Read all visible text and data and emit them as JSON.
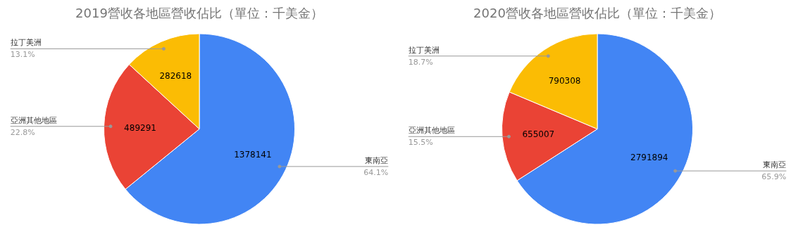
{
  "chart_data": [
    {
      "type": "pie",
      "title": "2019營收各地區營收佔比（單位：千美金）",
      "categories": [
        "東南亞",
        "亞洲其他地區",
        "拉丁美洲"
      ],
      "values": [
        1378141,
        489291,
        282618
      ],
      "colors": [
        "#4285f4",
        "#ea4335",
        "#fbbc04"
      ],
      "data_labels": true,
      "annotations": [
        "64.1%",
        "22.8%",
        "13.1%"
      ]
    },
    {
      "type": "pie",
      "title": "2020營收各地區營收佔比（單位：千美金）",
      "categories": [
        "東南亞",
        "亞洲其他地區",
        "拉丁美洲"
      ],
      "values": [
        2791894,
        655007,
        790308
      ],
      "colors": [
        "#4285f4",
        "#ea4335",
        "#fbbc04"
      ],
      "data_labels": true,
      "annotations": [
        "65.9%",
        "15.5%",
        "18.7%"
      ]
    }
  ]
}
